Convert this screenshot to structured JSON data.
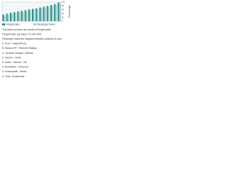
{
  "chart_data": {
    "type": "bar",
    "y_label": "Percentage",
    "categories": [
      null,
      null,
      null,
      null,
      null,
      null,
      null,
      null,
      null,
      null,
      null,
      null,
      null,
      null,
      null,
      null
    ],
    "series": [
      {
        "name": "Freight trains",
        "color": "#2f8f8a",
        "values": [
          35,
          40,
          45,
          48,
          52,
          55,
          58,
          62,
          65,
          68,
          72,
          76,
          80,
          85,
          90,
          98
        ]
      },
      {
        "name": "Passenger trains",
        "color": "#9fd3cf",
        "values": [
          30,
          35,
          40,
          44,
          48,
          50,
          54,
          58,
          60,
          64,
          68,
          72,
          76,
          80,
          86,
          95
        ]
      }
    ],
    "ylim": [
      0,
      100
    ],
    "yticks": [
      0,
      20,
      40,
      60,
      80,
      100
    ],
    "grid": true,
    "notes": [
      "This table excludes the results of freight trains",
      "Freight trains are trains of 1,000 NRT",
      "Passenger trains are weighted between stations of axes",
      "A. Perm - Yekaterinburg",
      "B. Moscow RF - Petersb'h Railway",
      "C. Yaroslavl-Vologda - Rybinsk",
      "D. Tyumen - Omsk",
      "E. Kazan - Samara - Ufa",
      "F. Novosibirsk - Kemerovo",
      "G. Krasnoyarsk - Irkutsk",
      "H. Chita - Khabarovsk"
    ]
  }
}
